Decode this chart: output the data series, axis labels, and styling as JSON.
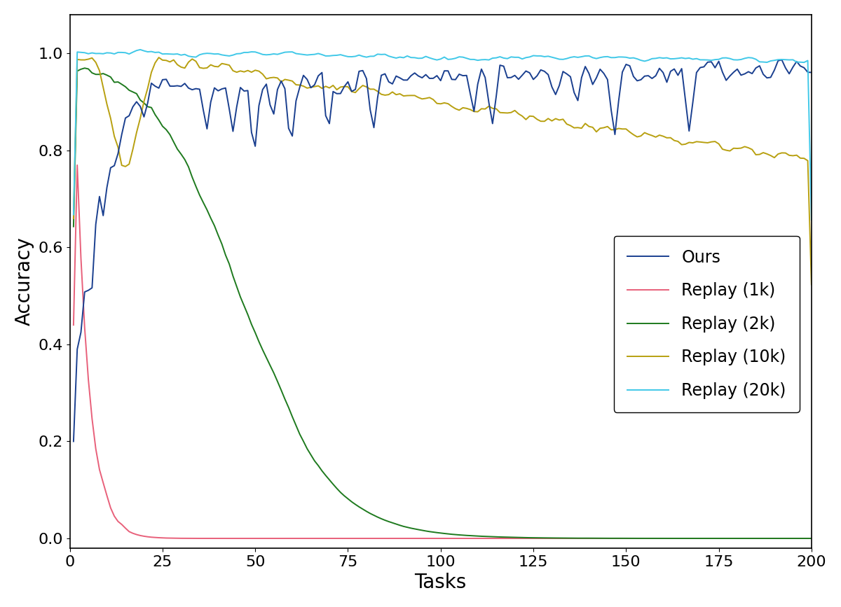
{
  "title": "",
  "xlabel": "Tasks",
  "ylabel": "Accuracy",
  "xlim": [
    0,
    200
  ],
  "ylim": [
    -0.02,
    1.08
  ],
  "xticks": [
    0,
    25,
    50,
    75,
    100,
    125,
    150,
    175,
    200
  ],
  "yticks": [
    0.0,
    0.2,
    0.4,
    0.6,
    0.8,
    1.0
  ],
  "colors": {
    "ours": "#1a3f8f",
    "replay_1k": "#e8607a",
    "replay_2k": "#1e7a1e",
    "replay_10k": "#b8a010",
    "replay_20k": "#40c8e8"
  },
  "legend_labels": [
    "Ours",
    "Replay (1k)",
    "Replay (2k)",
    "Replay (10k)",
    "Replay (20k)"
  ],
  "n_tasks": 200,
  "background_color": "#ffffff",
  "line_width": 1.4,
  "xlabel_fontsize": 20,
  "ylabel_fontsize": 20,
  "tick_fontsize": 16,
  "legend_fontsize": 17
}
